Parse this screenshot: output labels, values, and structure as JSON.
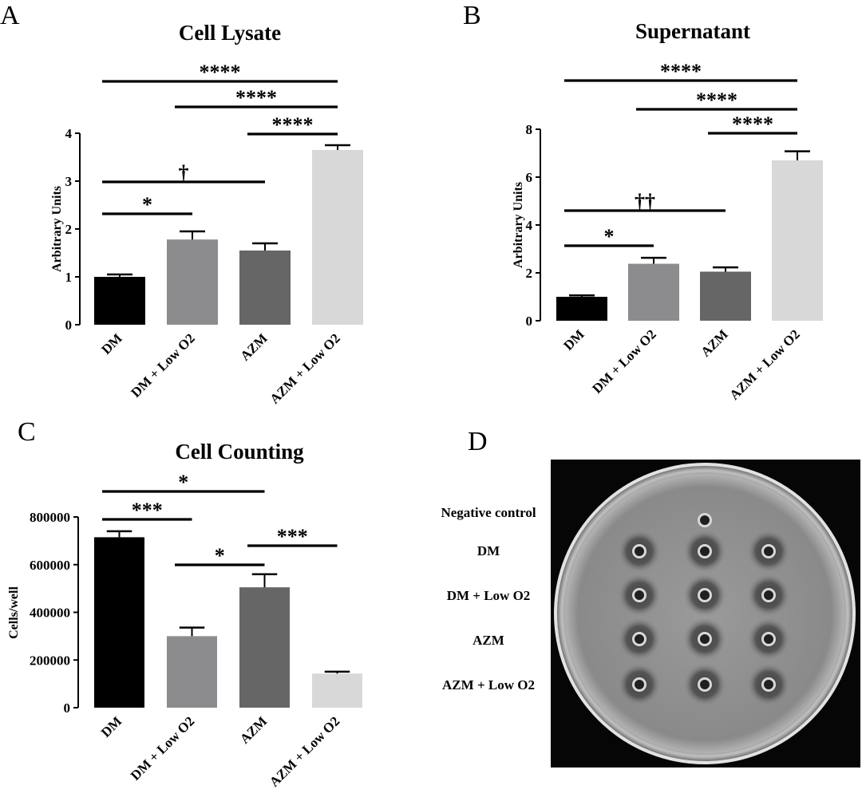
{
  "panel_letters": [
    "A",
    "B",
    "C",
    "D"
  ],
  "chart_data": [
    {
      "panel": "A",
      "type": "bar",
      "title": "Cell Lysate",
      "ylabel": "Arbitrary Units",
      "xlabel": "",
      "ylim": [
        0,
        4
      ],
      "yticks": [
        "0",
        "1",
        "2",
        "3",
        "4"
      ],
      "grid": false,
      "categories": [
        "DM",
        "DM + Low O2",
        "AZM",
        "AZM + Low O2"
      ],
      "values": [
        1.0,
        1.78,
        1.55,
        3.65
      ],
      "errors": [
        0.05,
        0.17,
        0.15,
        0.1
      ],
      "bar_colors": [
        "#000000",
        "#8c8c8e",
        "#666666",
        "#d8d8d8"
      ],
      "significance": [
        {
          "from": 0,
          "to": 3,
          "label": "****"
        },
        {
          "from": 1,
          "to": 3,
          "label": "****"
        },
        {
          "from": 2,
          "to": 3,
          "label": "****"
        },
        {
          "from": 0,
          "to": 2,
          "label": "†"
        },
        {
          "from": 0,
          "to": 1,
          "label": "*"
        }
      ]
    },
    {
      "panel": "B",
      "type": "bar",
      "title": "Supernatant",
      "ylabel": "Arbitrary Units",
      "xlabel": "",
      "ylim": [
        0,
        8
      ],
      "yticks": [
        "0",
        "2",
        "4",
        "6",
        "8"
      ],
      "grid": false,
      "categories": [
        "DM",
        "DM + Low O2",
        "AZM",
        "AZM + Low O2"
      ],
      "values": [
        1.0,
        2.38,
        2.05,
        6.7
      ],
      "errors": [
        0.06,
        0.25,
        0.18,
        0.38
      ],
      "bar_colors": [
        "#000000",
        "#8c8c8e",
        "#666666",
        "#d8d8d8"
      ],
      "significance": [
        {
          "from": 0,
          "to": 3,
          "label": "****"
        },
        {
          "from": 1,
          "to": 3,
          "label": "****"
        },
        {
          "from": 2,
          "to": 3,
          "label": "****"
        },
        {
          "from": 0,
          "to": 2,
          "label": "††"
        },
        {
          "from": 0,
          "to": 1,
          "label": "*"
        }
      ]
    },
    {
      "panel": "C",
      "type": "bar",
      "title": "Cell Counting",
      "ylabel": "Cells/well",
      "xlabel": "",
      "ylim": [
        0,
        800000
      ],
      "yticks": [
        "0",
        "200000",
        "400000",
        "600000",
        "800000"
      ],
      "grid": false,
      "categories": [
        "DM",
        "DM + Low O2",
        "AZM",
        "AZM + Low O2"
      ],
      "values": [
        715000,
        300000,
        505000,
        143000
      ],
      "errors": [
        25000,
        36000,
        55000,
        8000
      ],
      "bar_colors": [
        "#000000",
        "#8c8c8e",
        "#666666",
        "#d8d8d8"
      ],
      "significance": [
        {
          "from": 0,
          "to": 2,
          "label": "*"
        },
        {
          "from": 0,
          "to": 1,
          "label": "***"
        },
        {
          "from": 1,
          "to": 2,
          "label": "*"
        },
        {
          "from": 2,
          "to": 3,
          "label": "***"
        }
      ]
    }
  ],
  "plate": {
    "panel": "D",
    "row_labels": [
      "Negative control",
      "DM",
      "DM + Low O2",
      "AZM",
      "AZM + Low O2"
    ],
    "wells_per_row": [
      1,
      3,
      3,
      3,
      3
    ]
  }
}
